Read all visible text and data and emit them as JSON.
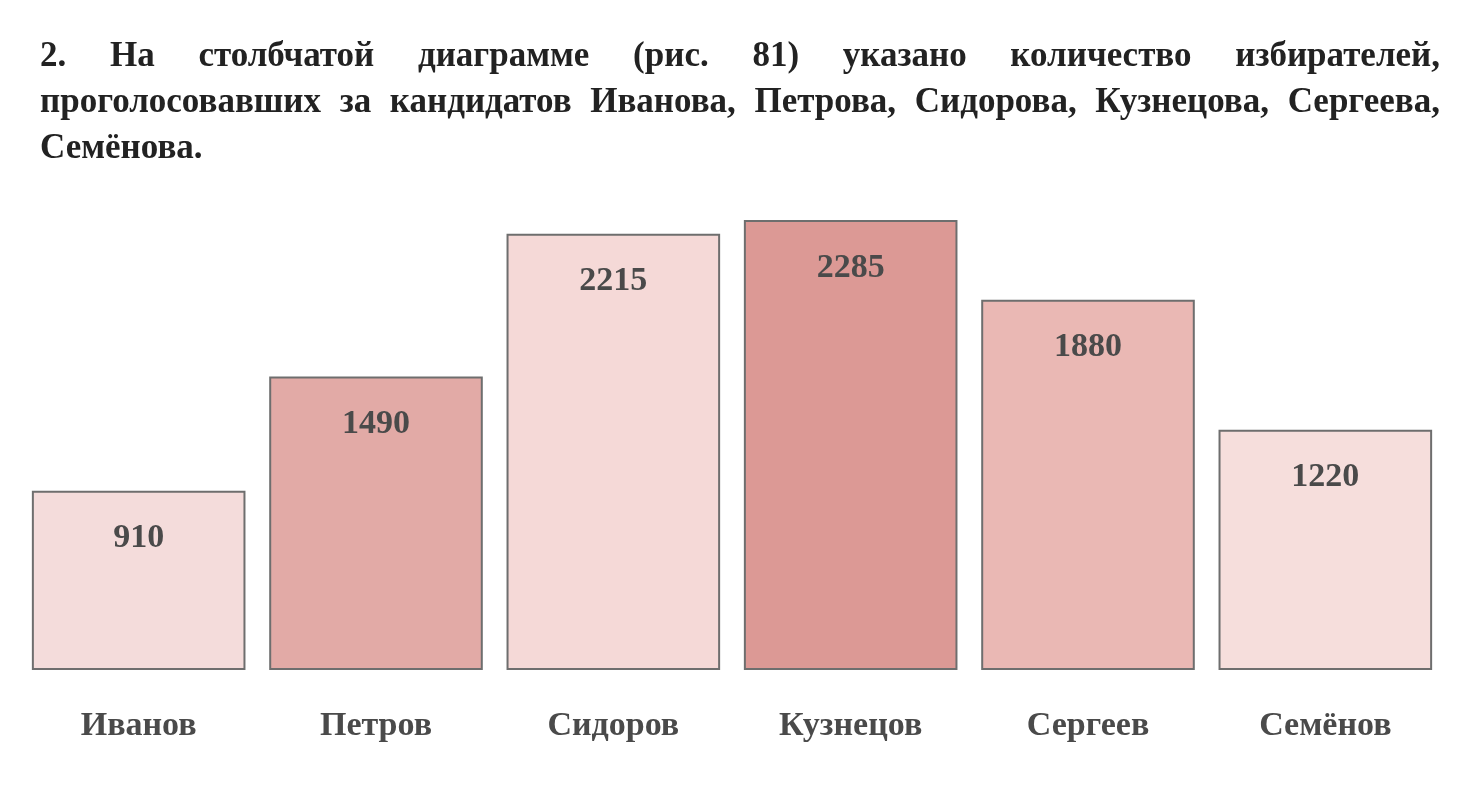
{
  "chart_data": {
    "type": "bar",
    "title": "2. На столбчатой диаграмме (рис. 81) указано количество избирателей, проголосовавших за кандидатов Иванова, Петрова, Сидорова, Кузнецова, Сергеева, Семёнова.",
    "categories": [
      "Иванов",
      "Петров",
      "Сидоров",
      "Кузнецов",
      "Сергеев",
      "Семёнов"
    ],
    "values": [
      910,
      1490,
      2215,
      2285,
      1880,
      1220
    ],
    "colors": [
      "#f4dcdb",
      "#e2aaa6",
      "#f5d9d7",
      "#dc9995",
      "#eab8b4",
      "#f6dedc"
    ],
    "data_labels": true
  }
}
